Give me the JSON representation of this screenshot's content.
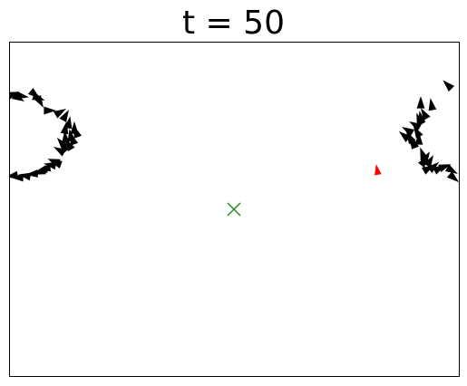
{
  "title": "t = 50",
  "colors": {
    "agents": "#000000",
    "highlighted_agent": "#ff0000",
    "target_marker": "#228b22",
    "frame": "#000000"
  },
  "marker_icon": "x-marker-icon"
}
